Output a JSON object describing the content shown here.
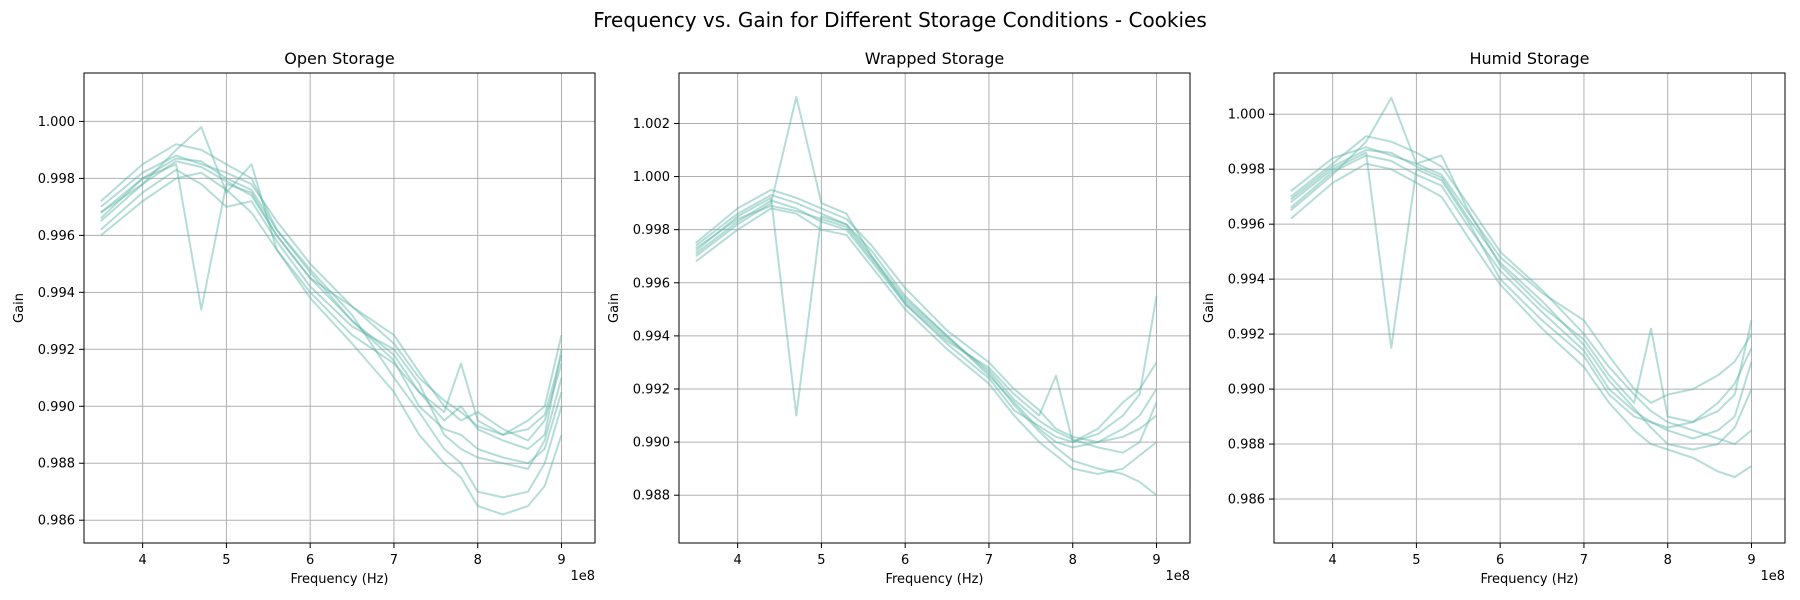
{
  "figure_title": "Frequency vs. Gain for Different Storage Conditions - Cookies",
  "colors": {
    "series": "#5ab4a6",
    "grid": "#b0b0b0",
    "axes": "#000000"
  },
  "chart_data": [
    {
      "type": "line",
      "title": "Open Storage",
      "xlabel": "Frequency (Hz)",
      "ylabel": "Gain",
      "x_offset_label": "1e8",
      "xlim": [
        330000000,
        940000000
      ],
      "ylim": [
        0.9852,
        1.0017
      ],
      "x_ticks": [
        400000000,
        500000000,
        600000000,
        700000000,
        800000000,
        900000000
      ],
      "x_tick_labels": [
        "4",
        "5",
        "6",
        "7",
        "8",
        "9"
      ],
      "y_ticks": [
        0.986,
        0.988,
        0.99,
        0.992,
        0.994,
        0.996,
        0.998,
        1.0
      ],
      "y_tick_labels": [
        "0.986",
        "0.988",
        "0.990",
        "0.992",
        "0.994",
        "0.996",
        "0.998",
        "1.000"
      ],
      "grid": true,
      "x": [
        350000000,
        400000000,
        440000000,
        470000000,
        500000000,
        530000000,
        560000000,
        600000000,
        650000000,
        700000000,
        730000000,
        760000000,
        780000000,
        800000000,
        830000000,
        860000000,
        880000000,
        900000000
      ],
      "series": [
        {
          "values": [
            0.9968,
            0.998,
            0.9985,
            0.9934,
            0.9978,
            0.9975,
            0.996,
            0.9945,
            0.993,
            0.9918,
            0.9905,
            0.9895,
            0.99,
            0.9892,
            0.9888,
            0.9885,
            0.989,
            0.992
          ]
        },
        {
          "values": [
            0.9965,
            0.9978,
            0.999,
            0.9998,
            0.9975,
            0.9985,
            0.9955,
            0.994,
            0.9925,
            0.9915,
            0.9905,
            0.9898,
            0.9915,
            0.9895,
            0.989,
            0.9895,
            0.99,
            0.9925
          ]
        },
        {
          "values": [
            0.997,
            0.9982,
            0.9988,
            0.9985,
            0.9982,
            0.9978,
            0.9965,
            0.995,
            0.9935,
            0.9925,
            0.9912,
            0.99,
            0.9895,
            0.9898,
            0.9892,
            0.9888,
            0.9895,
            0.9915
          ]
        },
        {
          "values": [
            0.9962,
            0.9975,
            0.9983,
            0.9978,
            0.997,
            0.9972,
            0.9958,
            0.9942,
            0.9928,
            0.992,
            0.9908,
            0.989,
            0.9885,
            0.9882,
            0.988,
            0.9878,
            0.9888,
            0.991
          ]
        },
        {
          "values": [
            0.9972,
            0.9985,
            0.9992,
            0.999,
            0.9985,
            0.998,
            0.9962,
            0.9948,
            0.9932,
            0.991,
            0.9898,
            0.9885,
            0.988,
            0.987,
            0.9868,
            0.987,
            0.988,
            0.99
          ]
        },
        {
          "values": [
            0.996,
            0.9972,
            0.998,
            0.9982,
            0.9976,
            0.9968,
            0.9955,
            0.9938,
            0.9922,
            0.9905,
            0.989,
            0.988,
            0.9875,
            0.9865,
            0.9862,
            0.9865,
            0.9872,
            0.989
          ]
        },
        {
          "values": [
            0.9968,
            0.9978,
            0.9986,
            0.9984,
            0.9979,
            0.9974,
            0.996,
            0.9945,
            0.9935,
            0.9922,
            0.991,
            0.9902,
            0.9898,
            0.9893,
            0.989,
            0.9892,
            0.9897,
            0.9918
          ]
        },
        {
          "values": [
            0.9966,
            0.998,
            0.9987,
            0.9986,
            0.998,
            0.9976,
            0.9962,
            0.9947,
            0.993,
            0.9916,
            0.99,
            0.9892,
            0.989,
            0.9885,
            0.9882,
            0.988,
            0.9885,
            0.9905
          ]
        }
      ]
    },
    {
      "type": "line",
      "title": "Wrapped Storage",
      "xlabel": "Frequency (Hz)",
      "ylabel": "Gain",
      "x_offset_label": "1e8",
      "xlim": [
        330000000,
        940000000
      ],
      "ylim": [
        0.9862,
        1.0039
      ],
      "x_ticks": [
        400000000,
        500000000,
        600000000,
        700000000,
        800000000,
        900000000
      ],
      "x_tick_labels": [
        "4",
        "5",
        "6",
        "7",
        "8",
        "9"
      ],
      "y_ticks": [
        0.988,
        0.99,
        0.992,
        0.994,
        0.996,
        0.998,
        1.0,
        1.002
      ],
      "y_tick_labels": [
        "0.988",
        "0.990",
        "0.992",
        "0.994",
        "0.996",
        "0.998",
        "1.000",
        "1.002"
      ],
      "grid": true,
      "x": [
        350000000,
        400000000,
        440000000,
        470000000,
        500000000,
        530000000,
        560000000,
        600000000,
        650000000,
        700000000,
        730000000,
        760000000,
        780000000,
        800000000,
        830000000,
        860000000,
        880000000,
        900000000
      ],
      "series": [
        {
          "values": [
            0.9972,
            0.9985,
            0.9992,
            0.991,
            0.9985,
            0.9982,
            0.9972,
            0.9955,
            0.994,
            0.9925,
            0.9915,
            0.9905,
            0.99,
            0.9898,
            0.99,
            0.9905,
            0.991,
            0.992
          ]
        },
        {
          "values": [
            0.997,
            0.9982,
            0.999,
            1.003,
            0.999,
            0.9986,
            0.997,
            0.9952,
            0.9938,
            0.9928,
            0.9918,
            0.991,
            0.9925,
            0.99,
            0.9905,
            0.9915,
            0.992,
            0.993
          ]
        },
        {
          "values": [
            0.9975,
            0.9988,
            0.9995,
            0.9992,
            0.9988,
            0.9984,
            0.9974,
            0.9958,
            0.9942,
            0.993,
            0.992,
            0.9912,
            0.9905,
            0.9902,
            0.99,
            0.9902,
            0.9905,
            0.991
          ]
        },
        {
          "values": [
            0.9968,
            0.998,
            0.9988,
            0.9986,
            0.998,
            0.9978,
            0.9966,
            0.995,
            0.9935,
            0.9922,
            0.991,
            0.99,
            0.9895,
            0.989,
            0.9888,
            0.989,
            0.9895,
            0.99
          ]
        },
        {
          "values": [
            0.9974,
            0.9986,
            0.9993,
            0.999,
            0.9986,
            0.9982,
            0.997,
            0.9954,
            0.994,
            0.9926,
            0.9914,
            0.9904,
            0.9898,
            0.9893,
            0.989,
            0.9888,
            0.9885,
            0.988
          ]
        },
        {
          "values": [
            0.9971,
            0.9983,
            0.9991,
            0.9988,
            0.9983,
            0.998,
            0.9968,
            0.9952,
            0.9937,
            0.9924,
            0.9912,
            0.9906,
            0.9902,
            0.99,
            0.9903,
            0.991,
            0.9918,
            0.9955
          ]
        },
        {
          "values": [
            0.9973,
            0.9984,
            0.9989,
            0.9987,
            0.9984,
            0.9981,
            0.9969,
            0.9953,
            0.9939,
            0.9927,
            0.9916,
            0.9908,
            0.9904,
            0.9901,
            0.9898,
            0.9896,
            0.99,
            0.9915
          ]
        }
      ]
    },
    {
      "type": "line",
      "title": "Humid Storage",
      "xlabel": "Frequency (Hz)",
      "ylabel": "Gain",
      "x_offset_label": "1e8",
      "xlim": [
        330000000,
        940000000
      ],
      "ylim": [
        0.9844,
        1.0015
      ],
      "x_ticks": [
        400000000,
        500000000,
        600000000,
        700000000,
        800000000,
        900000000
      ],
      "x_tick_labels": [
        "4",
        "5",
        "6",
        "7",
        "8",
        "9"
      ],
      "y_ticks": [
        0.986,
        0.988,
        0.99,
        0.992,
        0.994,
        0.996,
        0.998,
        1.0
      ],
      "y_tick_labels": [
        "0.986",
        "0.988",
        "0.990",
        "0.992",
        "0.994",
        "0.996",
        "0.998",
        "1.000"
      ],
      "grid": true,
      "x": [
        350000000,
        400000000,
        440000000,
        470000000,
        500000000,
        530000000,
        560000000,
        600000000,
        650000000,
        700000000,
        730000000,
        760000000,
        780000000,
        800000000,
        830000000,
        860000000,
        880000000,
        900000000
      ],
      "series": [
        {
          "values": [
            0.9968,
            0.998,
            0.9986,
            0.9915,
            0.998,
            0.9976,
            0.9962,
            0.994,
            0.9925,
            0.9912,
            0.9898,
            0.989,
            0.9888,
            0.9885,
            0.9882,
            0.9885,
            0.989,
            0.991
          ]
        },
        {
          "values": [
            0.9965,
            0.9978,
            0.999,
            1.0006,
            0.9982,
            0.9985,
            0.9966,
            0.9945,
            0.993,
            0.9918,
            0.9905,
            0.9895,
            0.9922,
            0.989,
            0.9888,
            0.9892,
            0.9898,
            0.9925
          ]
        },
        {
          "values": [
            0.9972,
            0.9984,
            0.9988,
            0.9985,
            0.9982,
            0.9978,
            0.9965,
            0.9948,
            0.9935,
            0.9925,
            0.9912,
            0.99,
            0.9895,
            0.9898,
            0.99,
            0.9905,
            0.991,
            0.992
          ]
        },
        {
          "values": [
            0.9962,
            0.9975,
            0.9982,
            0.998,
            0.9975,
            0.997,
            0.9956,
            0.9938,
            0.9922,
            0.9908,
            0.9895,
            0.9885,
            0.988,
            0.9878,
            0.9875,
            0.987,
            0.9868,
            0.9872
          ]
        },
        {
          "values": [
            0.997,
            0.9982,
            0.9992,
            0.999,
            0.9986,
            0.9981,
            0.9968,
            0.995,
            0.9936,
            0.992,
            0.9908,
            0.9898,
            0.9892,
            0.9888,
            0.9885,
            0.9882,
            0.988,
            0.9885
          ]
        },
        {
          "values": [
            0.9966,
            0.9979,
            0.9985,
            0.9983,
            0.9978,
            0.9974,
            0.996,
            0.9943,
            0.9928,
            0.9914,
            0.99,
            0.9892,
            0.9888,
            0.9886,
            0.9888,
            0.9895,
            0.9902,
            0.9915
          ]
        },
        {
          "values": [
            0.9969,
            0.9981,
            0.9987,
            0.9986,
            0.9981,
            0.9977,
            0.9963,
            0.9946,
            0.9932,
            0.9916,
            0.9903,
            0.9893,
            0.9886,
            0.988,
            0.9878,
            0.988,
            0.9886,
            0.99
          ]
        }
      ]
    }
  ]
}
